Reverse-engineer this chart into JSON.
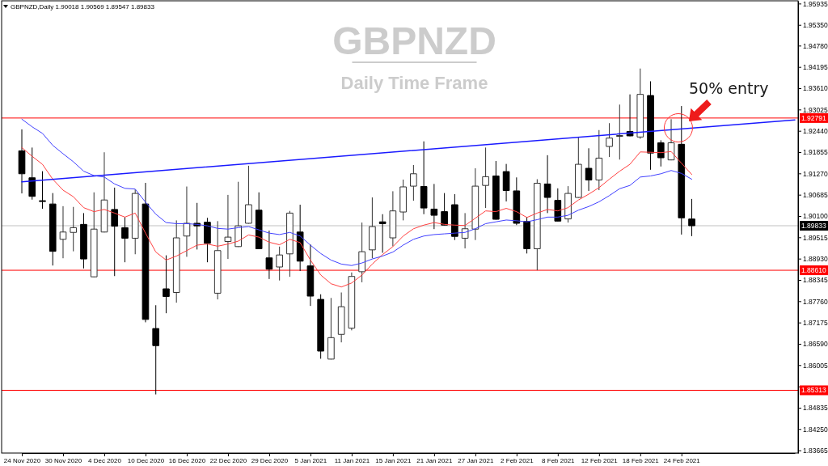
{
  "chart_data": {
    "type": "candlestick",
    "title": "GBPNZD",
    "subtitle": "Daily Time Frame",
    "categories": [
      "24 Nov 2020",
      null,
      null,
      null,
      "30 Nov 2020",
      null,
      null,
      null,
      "4 Dec 2020",
      null,
      null,
      null,
      "10 Dec 2020",
      null,
      null,
      null,
      "16 Dec 2020",
      null,
      null,
      null,
      "22 Dec 2020",
      null,
      null,
      null,
      "29 Dec 2020",
      null,
      null,
      null,
      "5 Jan 2021",
      null,
      null,
      null,
      "11 Jan 2021",
      null,
      null,
      null,
      "15 Jan 2021",
      null,
      null,
      null,
      "21 Jan 2021",
      null,
      null,
      null,
      "27 Jan 2021",
      null,
      null,
      null,
      "2 Feb 2021",
      null,
      null,
      null,
      "8 Feb 2021",
      null,
      null,
      null,
      "12 Feb 2021",
      null,
      null,
      null,
      "18 Feb 2021",
      null,
      null,
      null,
      "24 Feb 2021",
      null,
      null,
      null,
      null,
      null,
      null,
      null,
      null,
      null,
      null,
      null
    ],
    "ohlc": [
      [
        1.9189,
        1.9248,
        1.9072,
        1.9126
      ],
      [
        1.9115,
        1.9198,
        1.9055,
        1.9064
      ],
      [
        1.9052,
        1.9133,
        1.903,
        1.905
      ],
      [
        1.9043,
        1.9073,
        1.8874,
        1.8913
      ],
      [
        1.8946,
        1.9037,
        1.8894,
        1.8966
      ],
      [
        1.8965,
        1.9035,
        1.8913,
        1.8978
      ],
      [
        1.8987,
        1.9018,
        1.8866,
        1.8892
      ],
      [
        1.8843,
        1.9075,
        1.8842,
        1.8974
      ],
      [
        1.8966,
        1.9185,
        1.8965,
        1.9054
      ],
      [
        1.9028,
        1.9088,
        1.8845,
        1.8982
      ],
      [
        1.8978,
        1.9007,
        1.8883,
        1.8949
      ],
      [
        1.8949,
        1.9083,
        1.8905,
        1.9072
      ],
      [
        1.9043,
        1.9101,
        1.8718,
        1.8726
      ],
      [
        1.8701,
        1.8765,
        1.852,
        1.8654
      ],
      [
        1.881,
        1.8902,
        1.8743,
        1.8789
      ],
      [
        1.88,
        1.8998,
        1.8772,
        1.895
      ],
      [
        1.8955,
        1.9091,
        1.8898,
        1.899
      ],
      [
        1.899,
        1.9046,
        1.8918,
        1.8983
      ],
      [
        1.8993,
        1.9005,
        1.8883,
        1.8935
      ],
      [
        1.8798,
        1.8996,
        1.8781,
        1.8915
      ],
      [
        1.894,
        1.9068,
        1.8892,
        1.8952
      ],
      [
        1.8926,
        1.9104,
        1.8925,
        1.8983
      ],
      [
        1.899,
        1.9148,
        1.8989,
        1.9041
      ],
      [
        1.9026,
        1.9075,
        1.8919,
        1.892
      ],
      [
        1.8895,
        1.897,
        1.8837,
        1.8864
      ],
      [
        1.887,
        1.8926,
        1.8833,
        1.8903
      ],
      [
        1.8906,
        1.9024,
        1.8843,
        1.9018
      ],
      [
        1.8966,
        1.9041,
        1.8859,
        1.8886
      ],
      [
        1.8873,
        1.8932,
        1.8763,
        1.879
      ],
      [
        1.8781,
        1.8795,
        1.8618,
        1.8639
      ],
      [
        1.8617,
        1.8785,
        1.8616,
        1.8676
      ],
      [
        1.8685,
        1.88,
        1.8663,
        1.8761
      ],
      [
        1.8702,
        1.8855,
        1.8696,
        1.8844
      ],
      [
        1.8857,
        1.8992,
        1.8828,
        1.8912
      ],
      [
        1.8917,
        1.9061,
        1.8894,
        1.8981
      ],
      [
        1.8994,
        1.9015,
        1.8909,
        1.8989
      ],
      [
        1.895,
        1.9078,
        1.8927,
        1.9024
      ],
      [
        1.9021,
        1.911,
        1.8998,
        1.909
      ],
      [
        1.9092,
        1.915,
        1.9052,
        1.9126
      ],
      [
        1.9091,
        1.9215,
        1.9015,
        1.9032
      ],
      [
        1.9029,
        1.9098,
        1.8974,
        1.9012
      ],
      [
        1.9022,
        1.9073,
        1.8984,
        1.8985
      ],
      [
        1.9041,
        1.907,
        1.8944,
        1.8954
      ],
      [
        1.8949,
        1.9018,
        1.8921,
        1.8975
      ],
      [
        1.8974,
        1.9141,
        1.8944,
        1.9092
      ],
      [
        1.9094,
        1.9198,
        1.9032,
        1.9118
      ],
      [
        1.912,
        1.9161,
        1.9,
        1.9001
      ],
      [
        1.9132,
        1.9153,
        1.905,
        1.908
      ],
      [
        1.9079,
        1.9116,
        1.8985,
        1.899
      ],
      [
        1.8995,
        1.9007,
        1.8907,
        1.892
      ],
      [
        1.892,
        1.9111,
        1.8861,
        1.91
      ],
      [
        1.9098,
        1.9177,
        1.9018,
        1.9061
      ],
      [
        1.9053,
        1.9086,
        1.8995,
        1.8996
      ],
      [
        1.9002,
        1.9092,
        1.8992,
        1.9072
      ],
      [
        1.9061,
        1.9227,
        1.906,
        1.9152
      ],
      [
        1.9141,
        1.9196,
        1.9079,
        1.9109
      ],
      [
        1.9109,
        1.9246,
        1.9081,
        1.9169
      ],
      [
        1.9201,
        1.9265,
        1.9172,
        1.9224
      ],
      [
        1.9229,
        1.9316,
        1.9165,
        1.9231
      ],
      [
        1.9242,
        1.9344,
        1.9229,
        1.923
      ],
      [
        1.9227,
        1.9415,
        1.9222,
        1.9344
      ],
      [
        1.9341,
        1.938,
        1.9137,
        1.9183
      ],
      [
        1.9211,
        1.9218,
        1.9146,
        1.917
      ],
      [
        1.9164,
        1.9276,
        1.9163,
        1.9211
      ],
      [
        1.9207,
        1.9312,
        1.8959,
        1.9005
      ],
      [
        1.90018,
        1.90569,
        1.89547,
        1.89833
      ],
      null,
      null,
      null,
      null,
      null,
      null,
      null,
      null,
      null,
      null
    ],
    "series": [
      {
        "type": "line",
        "color": "#ff4040",
        "values": [
          1.9198,
          1.9174,
          1.9152,
          1.9111,
          1.9081,
          1.9063,
          1.9033,
          1.9022,
          1.9028,
          1.9018,
          1.9007,
          1.9018,
          1.8963,
          1.8911,
          1.8889,
          1.89,
          1.8915,
          1.893,
          1.8933,
          1.8927,
          1.8933,
          1.8941,
          1.8958,
          1.8952,
          1.8938,
          1.8931,
          1.8946,
          1.8937,
          1.8889,
          1.8848,
          1.8824,
          1.8815,
          1.8826,
          1.8848,
          1.8878,
          1.8904,
          1.8926,
          1.8955,
          1.8975,
          1.8985,
          1.8992,
          1.8987,
          1.8985,
          1.8984,
          1.9004,
          1.9024,
          1.9022,
          1.9031,
          1.9022,
          1.9006,
          1.9018,
          1.9028,
          1.9024,
          1.9033,
          1.9054,
          1.907,
          1.9088,
          1.9111,
          1.9133,
          1.9152,
          1.9186,
          1.9185,
          1.9184,
          1.9187,
          1.9155,
          1.9124,
          null,
          null,
          null,
          null,
          null,
          null,
          null,
          null,
          null,
          null
        ]
      },
      {
        "type": "line",
        "color": "#4040ff",
        "values": [
          1.9276,
          1.9255,
          1.9237,
          1.9204,
          1.9181,
          1.9159,
          1.9133,
          1.9121,
          1.9117,
          1.9098,
          1.9086,
          1.9084,
          1.9048,
          1.9015,
          1.8992,
          1.8989,
          1.8989,
          1.8987,
          1.8983,
          1.8976,
          1.8974,
          1.8978,
          1.8981,
          1.8972,
          1.8963,
          1.8959,
          1.8965,
          1.8955,
          1.893,
          1.8907,
          1.8889,
          1.8878,
          1.8874,
          1.8881,
          1.8892,
          1.89,
          1.8911,
          1.893,
          1.8946,
          1.8955,
          1.8959,
          1.8961,
          1.8963,
          1.8965,
          1.8975,
          1.8989,
          1.8994,
          1.8999,
          1.8997,
          1.8994,
          1.9,
          1.9007,
          1.9007,
          1.9012,
          1.9026,
          1.9036,
          1.9049,
          1.9066,
          1.9085,
          1.9094,
          1.9117,
          1.912,
          1.9126,
          1.9135,
          1.9127,
          1.9111,
          null,
          null,
          null,
          null,
          null,
          null,
          null,
          null,
          null,
          null
        ]
      },
      {
        "type": "line",
        "color": "#1a1aff",
        "values": [
          1.9104,
          null,
          null,
          null,
          null,
          null,
          null,
          null,
          null,
          null,
          null,
          null,
          null,
          null,
          null,
          null,
          null,
          null,
          null,
          null,
          null,
          null,
          null,
          null,
          null,
          null,
          null,
          null,
          null,
          null,
          null,
          null,
          null,
          null,
          null,
          null,
          null,
          null,
          null,
          null,
          null,
          null,
          null,
          null,
          null,
          null,
          null,
          null,
          null,
          null,
          null,
          null,
          null,
          null,
          null,
          null,
          null,
          null,
          null,
          null,
          null,
          null,
          null,
          null,
          null,
          null,
          null,
          null,
          null,
          null,
          null,
          null,
          null,
          null,
          null,
          1.9274
        ]
      }
    ],
    "ylim": [
      1.8359,
      1.9601
    ],
    "yticks": [
      1.83665,
      {
        "value": 1.8425,
        "label": "1.84250"
      },
      1.84835,
      {
        "value": 1.8542,
        "label": null
      },
      1.86005,
      {
        "value": 1.8659,
        "label": "1.86590"
      },
      1.87175,
      {
        "value": 1.8776,
        "label": "1.87760"
      },
      1.88345,
      {
        "value": 1.8893,
        "label": "1.88930"
      },
      1.89515,
      {
        "value": 1.901,
        "label": "1.90100"
      },
      1.90685,
      {
        "value": 1.9127,
        "label": "1.91270"
      },
      1.91855,
      {
        "value": 1.9244,
        "label": "1.92440"
      },
      1.93025,
      {
        "value": 1.9361,
        "label": "1.93610"
      },
      1.94195,
      {
        "value": 1.9478,
        "label": "1.94780"
      },
      {
        "value": 1.9535,
        "label": "1.95350"
      },
      1.95935
    ],
    "ref_lines": [
      {
        "axis": "y",
        "value": 1.92791,
        "label": "1.92791",
        "color": "#ff0000"
      },
      {
        "axis": "y",
        "value": 1.8861,
        "label": "1.88610",
        "color": "#ff0000"
      },
      {
        "axis": "y",
        "value": 1.85313,
        "label": "1.85313",
        "color": "#ff0000"
      },
      {
        "axis": "y",
        "value": 1.89833,
        "label": "1.89833",
        "color": "#c0c0c0"
      }
    ],
    "annotations": [
      "GBPNZD,Daily 1.90018 1.90569 1.89547 1.89833",
      "50% entry"
    ]
  }
}
